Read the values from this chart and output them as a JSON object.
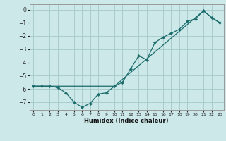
{
  "xlabel": "Humidex (Indice chaleur)",
  "background_color": "#cce8e8",
  "grid_color": "#aacccc",
  "line_color": "#1a6b6b",
  "xlim": [
    -0.5,
    23.5
  ],
  "ylim": [
    -7.6,
    0.4
  ],
  "xticks": [
    0,
    1,
    2,
    3,
    4,
    5,
    6,
    7,
    8,
    9,
    10,
    11,
    12,
    13,
    14,
    15,
    16,
    17,
    18,
    19,
    20,
    21,
    22,
    23
  ],
  "yticks": [
    0,
    -1,
    -2,
    -3,
    -4,
    -5,
    -6,
    -7
  ],
  "line1_x": [
    0,
    1,
    2,
    3,
    4,
    5,
    6,
    7,
    8,
    9,
    10,
    11,
    12,
    13,
    14,
    15,
    16,
    17,
    18,
    19,
    20,
    21,
    22,
    23
  ],
  "line1_y": [
    -5.8,
    -5.8,
    -5.8,
    -5.9,
    -6.3,
    -7.0,
    -7.4,
    -7.1,
    -6.4,
    -6.3,
    -5.8,
    -5.5,
    -4.5,
    -3.5,
    -3.8,
    -2.5,
    -2.1,
    -1.8,
    -1.5,
    -0.9,
    -0.7,
    -0.1,
    -0.6,
    -1.0
  ],
  "line2_x": [
    0,
    2,
    9,
    10,
    21,
    22,
    23
  ],
  "line2_y": [
    -5.8,
    -5.8,
    -5.8,
    -5.8,
    -0.1,
    -0.6,
    -1.0
  ]
}
